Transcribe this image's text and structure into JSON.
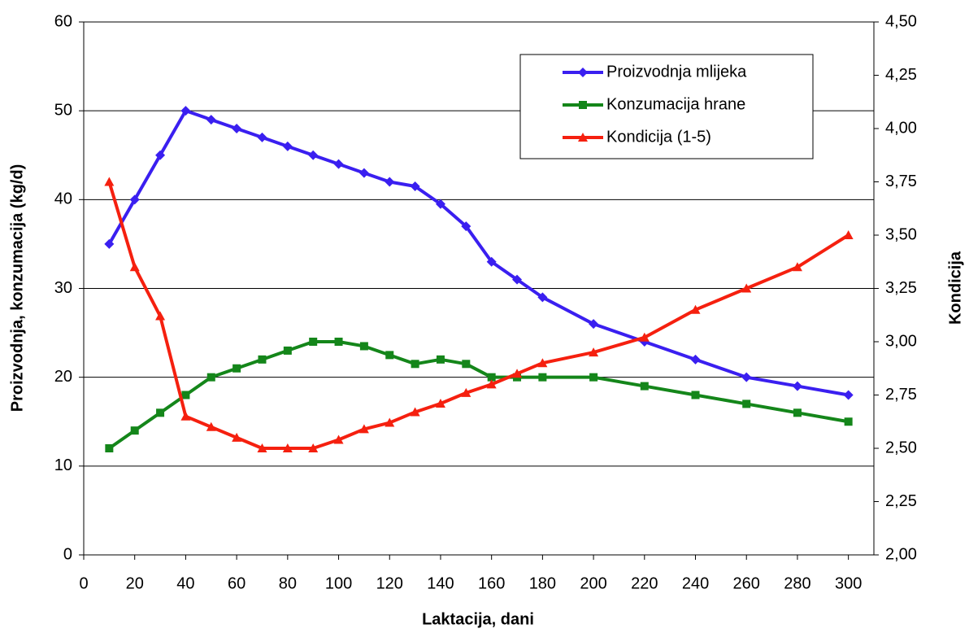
{
  "chart_data": {
    "type": "line",
    "xlabel": "Laktacija, dani",
    "ylabel": "Proizvodnja, konzumacija (kg/d)",
    "y2label": "Kondicija",
    "x": [
      10,
      20,
      30,
      40,
      50,
      60,
      70,
      80,
      90,
      100,
      110,
      120,
      130,
      140,
      150,
      160,
      170,
      180,
      200,
      220,
      240,
      260,
      280,
      300
    ],
    "series": [
      {
        "name": "Proizvodnja mlijeka",
        "color": "#3a1ff0",
        "marker": "diamond",
        "values": [
          35,
          40,
          45,
          50,
          49,
          48,
          47,
          46,
          45,
          44,
          43,
          42,
          41.5,
          39.5,
          37,
          33,
          31,
          29,
          26,
          24,
          22,
          20,
          19,
          18
        ]
      },
      {
        "name": "Konzumacija hrane",
        "color": "#14861a",
        "marker": "square",
        "values": [
          12,
          14,
          16,
          18,
          20,
          21,
          22,
          23,
          24,
          24,
          23.5,
          22.5,
          21.5,
          22,
          21.5,
          20,
          20,
          20,
          20,
          19,
          18,
          17,
          16,
          15
        ]
      },
      {
        "name": "Kondicija (1-5)",
        "color": "#f5200f",
        "marker": "triangle",
        "axis": "y2",
        "values": [
          3.75,
          3.35,
          3.12,
          2.65,
          2.6,
          2.55,
          2.5,
          2.5,
          2.5,
          2.54,
          2.59,
          2.62,
          2.67,
          2.71,
          2.76,
          2.8,
          2.85,
          2.9,
          2.95,
          3.02,
          3.15,
          3.25,
          3.35,
          3.5
        ]
      }
    ],
    "xlim": [
      0,
      310
    ],
    "xticks": [
      0,
      20,
      40,
      60,
      80,
      100,
      120,
      140,
      160,
      180,
      200,
      220,
      240,
      260,
      280,
      300
    ],
    "ylim": [
      0,
      60
    ],
    "yticks": [
      0,
      10,
      20,
      30,
      40,
      50,
      60
    ],
    "y2lim": [
      2,
      4.5
    ],
    "y2ticks": [
      {
        "value": 2,
        "label": "2,00"
      },
      {
        "value": 2.25,
        "label": "2,25"
      },
      {
        "value": 2.5,
        "label": "2,50"
      },
      {
        "value": 2.75,
        "label": "2,75"
      },
      {
        "value": 3,
        "label": "3,00"
      },
      {
        "value": 3.25,
        "label": "3,25"
      },
      {
        "value": 3.5,
        "label": "3,50"
      },
      {
        "value": 3.75,
        "label": "3,75"
      },
      {
        "value": 4,
        "label": "4,00"
      },
      {
        "value": 4.25,
        "label": "4,25"
      },
      {
        "value": 4.5,
        "label": "4,50"
      }
    ],
    "grid": true,
    "legend": "top-right"
  }
}
